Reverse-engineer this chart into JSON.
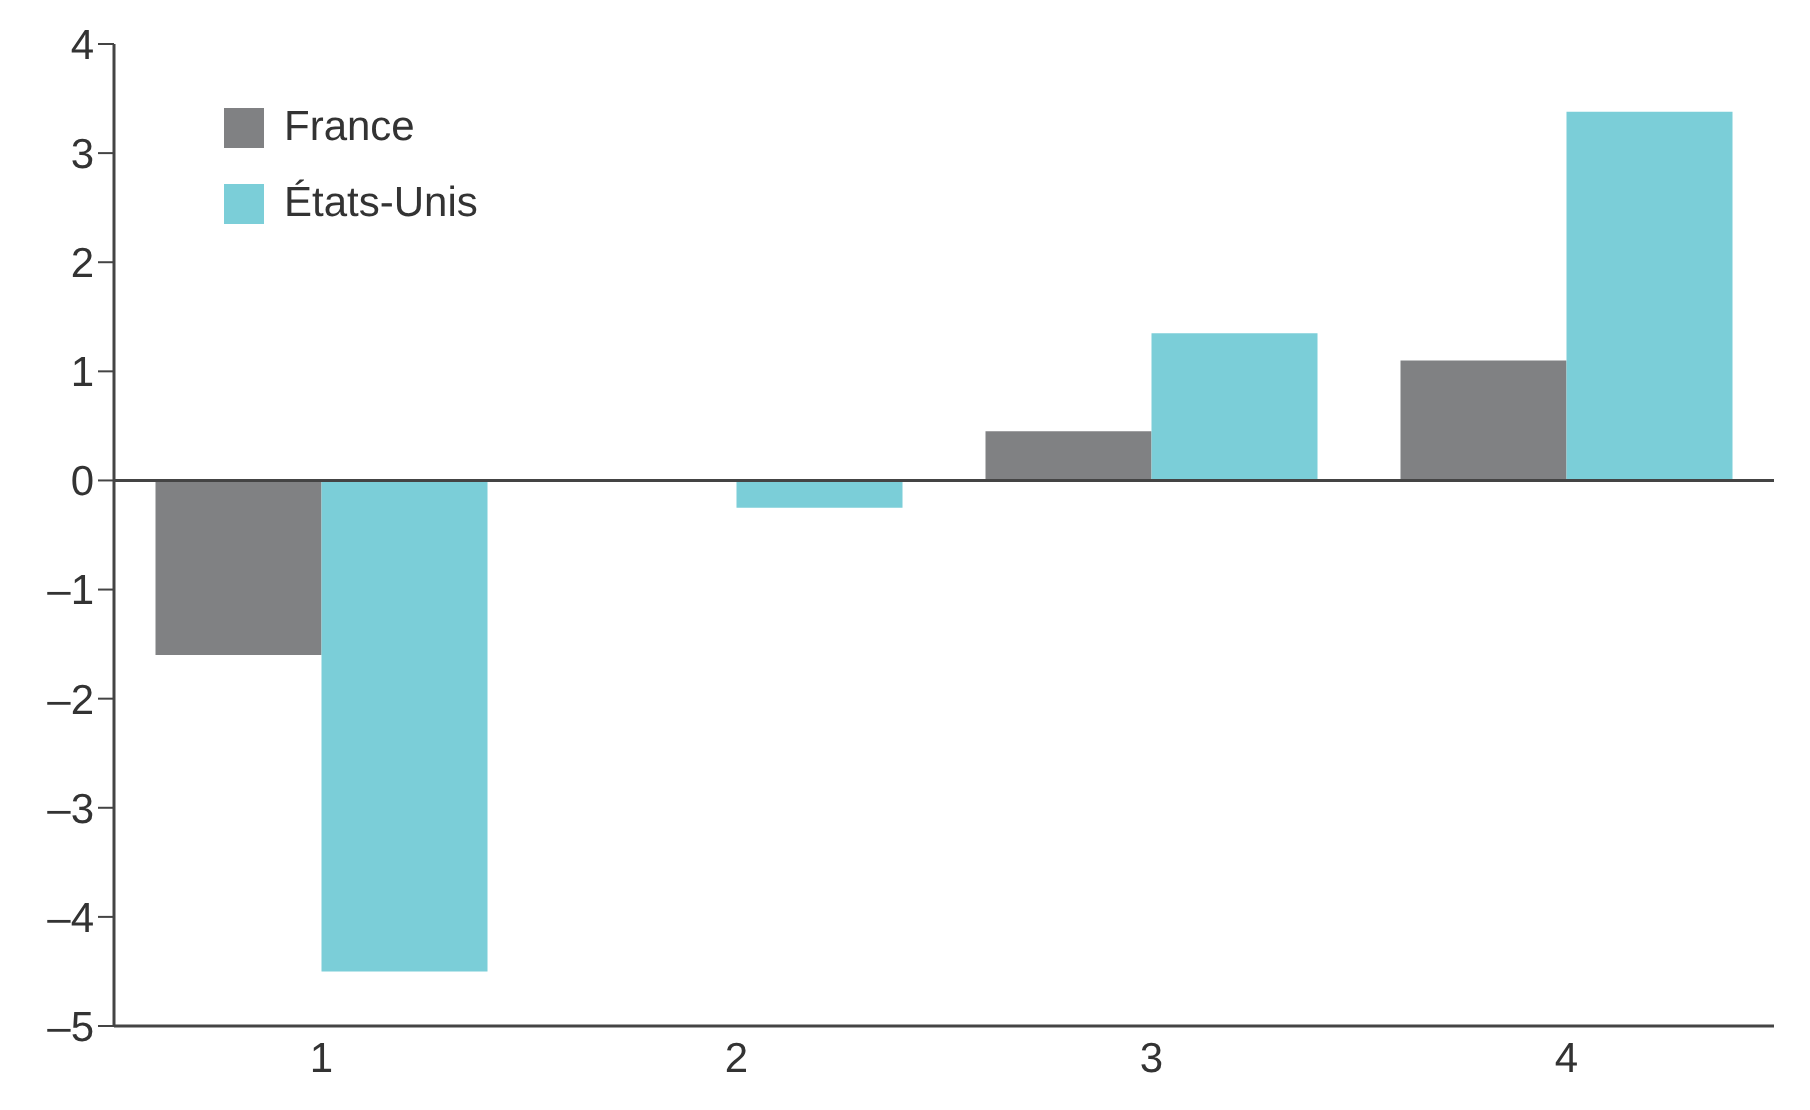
{
  "chart_data": {
    "type": "bar",
    "categories": [
      "1",
      "2",
      "3",
      "4"
    ],
    "series": [
      {
        "name": "France",
        "color": "#808183",
        "values": [
          -1.6,
          0,
          0.45,
          1.1
        ]
      },
      {
        "name": "États-Unis",
        "color": "#7bced8",
        "values": [
          -4.5,
          -0.25,
          1.35,
          3.38
        ]
      }
    ],
    "ylim": [
      -5,
      4
    ],
    "yticks": [
      {
        "value": -5,
        "label": "–5"
      },
      {
        "value": -4,
        "label": "–4"
      },
      {
        "value": -3,
        "label": "–3"
      },
      {
        "value": -2,
        "label": "–2"
      },
      {
        "value": -1,
        "label": "–1"
      },
      0,
      1,
      2,
      3,
      4
    ],
    "ref_lines": [
      {
        "axis": "y",
        "value": 0,
        "color": "#444444"
      }
    ],
    "grid": false,
    "legend": "top left"
  }
}
